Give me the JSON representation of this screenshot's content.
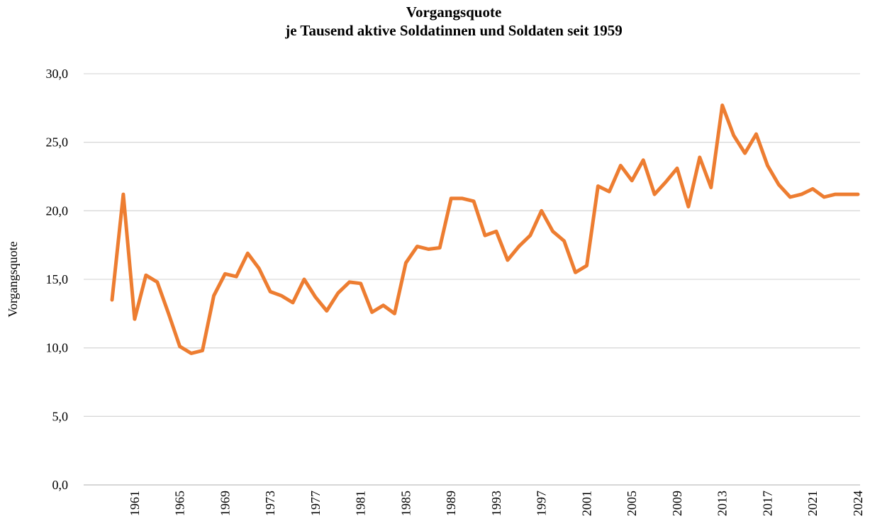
{
  "chart_data": {
    "type": "line",
    "title": [
      "Vorgangsquote",
      "je Tausend aktive Soldatinnen und Soldaten seit 1959"
    ],
    "y_label": "Vorgangsquote",
    "categories": [
      null,
      null,
      "1961",
      null,
      null,
      null,
      "1965",
      null,
      null,
      null,
      "1969",
      null,
      null,
      null,
      "1973",
      null,
      null,
      null,
      "1977",
      null,
      null,
      null,
      "1981",
      null,
      null,
      null,
      "1985",
      null,
      null,
      null,
      "1989",
      null,
      null,
      null,
      "1993",
      null,
      null,
      null,
      "1997",
      null,
      null,
      null,
      "2001",
      null,
      null,
      null,
      "2005",
      null,
      null,
      null,
      "2009",
      null,
      null,
      null,
      "2013",
      null,
      null,
      null,
      "2017",
      null,
      null,
      null,
      "2021",
      null,
      null,
      null,
      "2024"
    ],
    "series": [
      {
        "name": "Vorgangsquote",
        "color": "#ed7d31",
        "values": [
          13.5,
          21.2,
          12.1,
          15.3,
          14.8,
          12.5,
          10.1,
          9.6,
          9.8,
          13.8,
          15.4,
          15.2,
          16.9,
          15.8,
          14.1,
          13.8,
          13.3,
          15.0,
          13.7,
          12.7,
          14.0,
          14.8,
          14.7,
          12.6,
          13.1,
          12.5,
          16.2,
          17.4,
          17.2,
          17.3,
          20.9,
          20.9,
          20.7,
          18.2,
          18.5,
          16.4,
          17.4,
          18.2,
          20.0,
          18.5,
          17.8,
          15.5,
          16.0,
          21.8,
          21.4,
          23.3,
          22.2,
          23.7,
          21.2,
          22.1,
          23.1,
          20.3,
          23.9,
          21.7,
          27.7,
          25.5,
          24.2,
          25.6,
          23.3,
          21.9,
          21.0,
          21.2,
          21.6,
          21.0,
          21.2,
          21.2,
          21.2
        ]
      }
    ],
    "ylim": [
      0,
      30
    ],
    "yticks": [
      {
        "value": 0,
        "label": "0,0"
      },
      {
        "value": 5,
        "label": "5,0"
      },
      {
        "value": 10,
        "label": "10,0"
      },
      {
        "value": 15,
        "label": "15,0"
      },
      {
        "value": 20,
        "label": "20,0"
      },
      {
        "value": 25,
        "label": "25,0"
      },
      {
        "value": 30,
        "label": "30,0"
      }
    ],
    "grid": true
  }
}
